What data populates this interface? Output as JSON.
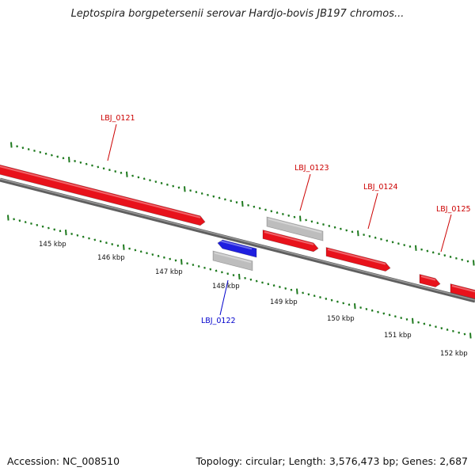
{
  "title": "Leptospira borgpetersenii serovar Hardjo-bovis JB197 chromos...",
  "footer": {
    "accession": "Accession: NC_008510",
    "summary": "Topology: circular; Length: 3,576,473 bp; Genes: 2,687"
  },
  "ruler_labels": [
    "145 kbp",
    "146 kbp",
    "147 kbp",
    "148 kbp",
    "149 kbp",
    "150 kbp",
    "151 kbp",
    "152 kbp"
  ],
  "genes": [
    {
      "id": "LBJ_0121",
      "label": "LBJ_0121",
      "strand": "forward"
    },
    {
      "id": "LBJ_0122",
      "label": "LBJ_0122",
      "strand": "reverse"
    },
    {
      "id": "LBJ_0123",
      "label": "LBJ_0123",
      "strand": "forward"
    },
    {
      "id": "LBJ_0124",
      "label": "LBJ_0124",
      "strand": "forward"
    },
    {
      "id": "LBJ_0125",
      "label": "LBJ_0125",
      "strand": "forward"
    }
  ],
  "colors": {
    "forward_gene": "#e8121b",
    "reverse_gene": "#1f1fe0",
    "feature_grey": "#bdbdbd",
    "backbone": "#7a7a7a",
    "ticks": "#1f7a1f",
    "forward_label": "#cc0000",
    "reverse_label": "#0000cc"
  }
}
